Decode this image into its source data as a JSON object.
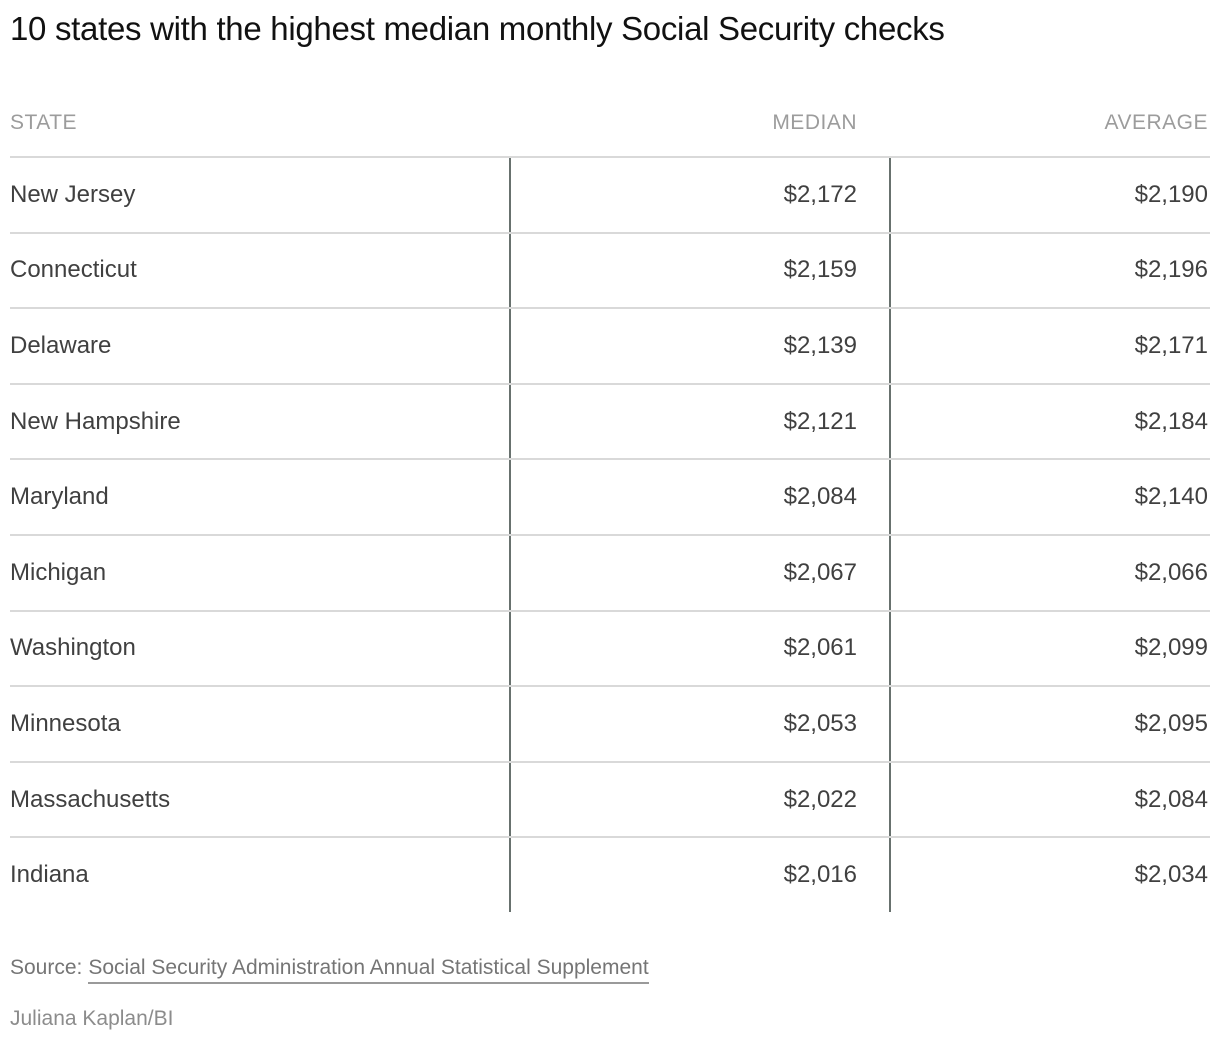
{
  "title": "10 states with the highest median monthly Social Security checks",
  "table": {
    "columns": [
      {
        "label": "STATE"
      },
      {
        "label": "MEDIAN"
      },
      {
        "label": "AVERAGE"
      }
    ],
    "rows": [
      {
        "state": "New Jersey",
        "median": "$2,172",
        "average": "$2,190"
      },
      {
        "state": "Connecticut",
        "median": "$2,159",
        "average": "$2,196"
      },
      {
        "state": "Delaware",
        "median": "$2,139",
        "average": "$2,171"
      },
      {
        "state": "New Hampshire",
        "median": "$2,121",
        "average": "$2,184"
      },
      {
        "state": "Maryland",
        "median": "$2,084",
        "average": "$2,140"
      },
      {
        "state": "Michigan",
        "median": "$2,067",
        "average": "$2,066"
      },
      {
        "state": "Washington",
        "median": "$2,061",
        "average": "$2,099"
      },
      {
        "state": "Minnesota",
        "median": "$2,053",
        "average": "$2,095"
      },
      {
        "state": "Massachusetts",
        "median": "$2,022",
        "average": "$2,084"
      },
      {
        "state": "Indiana",
        "median": "$2,016",
        "average": "$2,034"
      }
    ]
  },
  "footer": {
    "source_prefix": "Source:",
    "source_link": "Social Security Administration Annual Statistical Supplement",
    "credit": "Juliana Kaplan/BI"
  },
  "colors": {
    "title_text": "#111111",
    "cell_text": "#404040",
    "header_text": "#9c9c9c",
    "rule_light": "#d9d9d9",
    "rule_dark": "#68716e",
    "source_text": "#757575",
    "credit_text": "#8c8c8c",
    "background": "#ffffff"
  },
  "chart_data": {
    "type": "table",
    "title": "10 states with the highest median monthly Social Security checks",
    "columns": [
      "STATE",
      "MEDIAN",
      "AVERAGE"
    ],
    "categories": [
      "New Jersey",
      "Connecticut",
      "Delaware",
      "New Hampshire",
      "Maryland",
      "Michigan",
      "Washington",
      "Minnesota",
      "Massachusetts",
      "Indiana"
    ],
    "series": [
      {
        "name": "MEDIAN",
        "values": [
          2172,
          2159,
          2139,
          2121,
          2084,
          2067,
          2061,
          2053,
          2022,
          2016
        ]
      },
      {
        "name": "AVERAGE",
        "values": [
          2190,
          2196,
          2171,
          2184,
          2140,
          2066,
          2099,
          2095,
          2084,
          2034
        ]
      }
    ],
    "value_format": "$#,##0",
    "source": "Social Security Administration Annual Statistical Supplement",
    "credit": "Juliana Kaplan/BI"
  }
}
